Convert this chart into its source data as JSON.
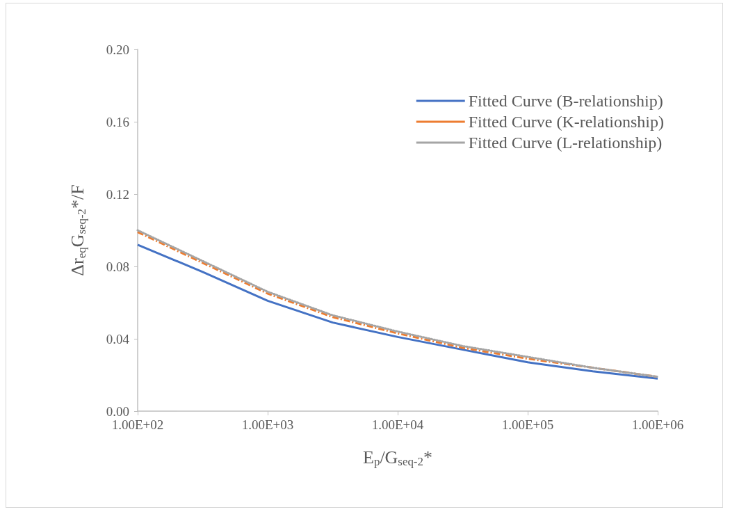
{
  "chart_data": {
    "type": "line",
    "xlabel": "E$_{p}$/G$_{seq-2}$*",
    "ylabel": "Δr$_{eq}$G$_{seq-2}$*/F",
    "x": [
      100,
      316,
      1000,
      3162,
      10000,
      31623,
      100000,
      316228,
      1000000
    ],
    "series": [
      {
        "name": "Fitted Curve (B-relationship)",
        "color": "#4472c4",
        "line_style": "solid",
        "values": [
          0.092,
          0.077,
          0.061,
          0.049,
          0.041,
          0.034,
          0.027,
          0.022,
          0.018
        ]
      },
      {
        "name": "Fitted Curve (K-relationship)",
        "color": "#ed7d31",
        "line_style": "dashed",
        "values": [
          0.099,
          0.082,
          0.065,
          0.052,
          0.043,
          0.035,
          0.029,
          0.024,
          0.019
        ]
      },
      {
        "name": "Fitted Curve (L-relationship)",
        "color": "#a5a5a5",
        "line_style": "dotted",
        "values": [
          0.1,
          0.083,
          0.066,
          0.053,
          0.044,
          0.036,
          0.03,
          0.024,
          0.019
        ]
      }
    ],
    "log": "x",
    "xlim": [
      100,
      1000000
    ],
    "xticks": [
      {
        "value": 100,
        "label": "1.00E+02"
      },
      {
        "value": 1000,
        "label": "1.00E+03"
      },
      {
        "value": 10000,
        "label": "1.00E+04"
      },
      {
        "value": 100000,
        "label": "1.00E+05"
      },
      {
        "value": 1000000,
        "label": "1.00E+06"
      }
    ],
    "ylim": [
      0,
      0.2
    ],
    "yticks": [
      {
        "value": 0,
        "label": "0.00"
      },
      {
        "value": 0.04,
        "label": "0.04"
      },
      {
        "value": 0.08,
        "label": "0.08"
      },
      {
        "value": 0.12,
        "label": "0.12"
      },
      {
        "value": 0.16,
        "label": "0.16"
      },
      {
        "value": 0.2,
        "label": "0.20"
      }
    ],
    "grid": false,
    "legend": "top right",
    "marker": "none"
  }
}
